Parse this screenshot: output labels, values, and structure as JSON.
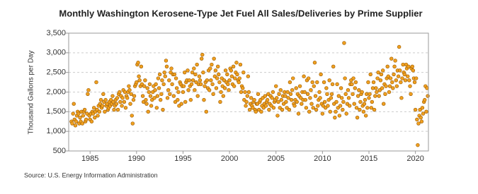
{
  "chart_data": {
    "type": "scatter",
    "title": "Monthly Washington Kerosene-Type Jet Fuel All Sales/Deliveries by Prime Supplier",
    "y_label": "Thousand Gallons per Day",
    "source": "Source: U.S. Energy Information Administration",
    "xlim": [
      1982.7,
      2021.4
    ],
    "xticks": [
      1985,
      1990,
      1995,
      2000,
      2005,
      2010,
      2015,
      2020
    ],
    "ylim": [
      500,
      3500
    ],
    "yticks": [
      500,
      {
        "value": 1000,
        "label": "1,000"
      },
      {
        "value": 1500,
        "label": "1,500"
      },
      {
        "value": 2000,
        "label": "2,000"
      },
      {
        "value": 2500,
        "label": "2,500"
      },
      {
        "value": 3000,
        "label": "3,000"
      },
      {
        "value": 3500,
        "label": "3,500"
      }
    ],
    "grid": true,
    "color": "#f0a020",
    "x": [
      1983,
      1983.08,
      1983.17,
      1983.25,
      1983.33,
      1983.42,
      1983.5,
      1983.58,
      1983.67,
      1983.75,
      1983.83,
      1983.92,
      1984,
      1984.08,
      1984.17,
      1984.25,
      1984.33,
      1984.42,
      1984.5,
      1984.58,
      1984.67,
      1984.75,
      1984.83,
      1984.92,
      1985,
      1985.08,
      1985.17,
      1985.25,
      1985.33,
      1985.42,
      1985.5,
      1985.58,
      1985.67,
      1985.75,
      1985.83,
      1985.92,
      1986,
      1986.08,
      1986.17,
      1986.25,
      1986.33,
      1986.42,
      1986.5,
      1986.58,
      1986.67,
      1986.75,
      1986.83,
      1986.92,
      1987,
      1987.08,
      1987.17,
      1987.25,
      1987.33,
      1987.42,
      1987.5,
      1987.58,
      1987.67,
      1987.75,
      1987.83,
      1987.92,
      1988,
      1988.08,
      1988.17,
      1988.25,
      1988.33,
      1988.42,
      1988.5,
      1988.58,
      1988.67,
      1988.75,
      1988.83,
      1988.92,
      1989,
      1989.08,
      1989.17,
      1989.25,
      1989.33,
      1989.42,
      1989.5,
      1989.58,
      1989.67,
      1989.75,
      1989.83,
      1989.92,
      1990,
      1990.08,
      1990.17,
      1990.25,
      1990.33,
      1990.42,
      1990.5,
      1990.58,
      1990.67,
      1990.75,
      1990.83,
      1990.92,
      1991,
      1991.08,
      1991.17,
      1991.25,
      1991.33,
      1991.42,
      1991.5,
      1991.58,
      1991.67,
      1991.75,
      1991.83,
      1991.92,
      1992,
      1992.08,
      1992.17,
      1992.25,
      1992.33,
      1992.42,
      1992.5,
      1992.58,
      1992.67,
      1992.75,
      1992.83,
      1992.92,
      1993,
      1993.08,
      1993.17,
      1993.25,
      1993.33,
      1993.42,
      1993.5,
      1993.58,
      1993.67,
      1993.75,
      1993.83,
      1993.92,
      1994,
      1994.08,
      1994.17,
      1994.25,
      1994.33,
      1994.42,
      1994.5,
      1994.58,
      1994.67,
      1994.75,
      1994.83,
      1994.92,
      1995,
      1995.08,
      1995.17,
      1995.25,
      1995.33,
      1995.42,
      1995.5,
      1995.58,
      1995.67,
      1995.75,
      1995.83,
      1995.92,
      1996,
      1996.08,
      1996.17,
      1996.25,
      1996.33,
      1996.42,
      1996.5,
      1996.58,
      1996.67,
      1996.75,
      1996.83,
      1996.92,
      1997,
      1997.08,
      1997.17,
      1997.25,
      1997.33,
      1997.42,
      1997.5,
      1997.58,
      1997.67,
      1997.75,
      1997.83,
      1997.92,
      1998,
      1998.08,
      1998.17,
      1998.25,
      1998.33,
      1998.42,
      1998.5,
      1998.58,
      1998.67,
      1998.75,
      1998.83,
      1998.92,
      1999,
      1999.08,
      1999.17,
      1999.25,
      1999.33,
      1999.42,
      1999.5,
      1999.58,
      1999.67,
      1999.75,
      1999.83,
      1999.92,
      2000,
      2000.08,
      2000.17,
      2000.25,
      2000.33,
      2000.42,
      2000.5,
      2000.58,
      2000.67,
      2000.75,
      2000.83,
      2000.92,
      2001,
      2001.08,
      2001.17,
      2001.25,
      2001.33,
      2001.42,
      2001.5,
      2001.58,
      2001.67,
      2001.75,
      2001.83,
      2001.92,
      2002,
      2002.08,
      2002.17,
      2002.25,
      2002.33,
      2002.42,
      2002.5,
      2002.58,
      2002.67,
      2002.75,
      2002.83,
      2002.92,
      2003,
      2003.08,
      2003.17,
      2003.25,
      2003.33,
      2003.42,
      2003.5,
      2003.58,
      2003.67,
      2003.75,
      2003.83,
      2003.92,
      2004,
      2004.08,
      2004.17,
      2004.25,
      2004.33,
      2004.42,
      2004.5,
      2004.58,
      2004.67,
      2004.75,
      2004.83,
      2004.92,
      2005,
      2005.08,
      2005.17,
      2005.25,
      2005.33,
      2005.42,
      2005.5,
      2005.58,
      2005.67,
      2005.75,
      2005.83,
      2005.92,
      2006,
      2006.08,
      2006.17,
      2006.25,
      2006.33,
      2006.42,
      2006.5,
      2006.58,
      2006.67,
      2006.75,
      2006.83,
      2006.92,
      2007,
      2007.08,
      2007.17,
      2007.25,
      2007.33,
      2007.42,
      2007.5,
      2007.58,
      2007.67,
      2007.75,
      2007.83,
      2007.92,
      2008,
      2008.08,
      2008.17,
      2008.25,
      2008.33,
      2008.42,
      2008.5,
      2008.58,
      2008.67,
      2008.75,
      2008.83,
      2008.92,
      2009,
      2009.08,
      2009.17,
      2009.25,
      2009.33,
      2009.42,
      2009.5,
      2009.58,
      2009.67,
      2009.75,
      2009.83,
      2009.92,
      2010,
      2010.08,
      2010.17,
      2010.25,
      2010.33,
      2010.42,
      2010.5,
      2010.58,
      2010.67,
      2010.75,
      2010.83,
      2010.92,
      2011,
      2011.08,
      2011.17,
      2011.25,
      2011.33,
      2011.42,
      2011.5,
      2011.58,
      2011.67,
      2011.75,
      2011.83,
      2011.92,
      2012,
      2012.08,
      2012.17,
      2012.25,
      2012.33,
      2012.42,
      2012.5,
      2012.58,
      2012.67,
      2012.75,
      2012.83,
      2012.92,
      2013,
      2013.08,
      2013.17,
      2013.25,
      2013.33,
      2013.42,
      2013.5,
      2013.58,
      2013.67,
      2013.75,
      2013.83,
      2013.92,
      2014,
      2014.08,
      2014.17,
      2014.25,
      2014.33,
      2014.42,
      2014.5,
      2014.58,
      2014.67,
      2014.75,
      2014.83,
      2014.92,
      2015,
      2015.08,
      2015.17,
      2015.25,
      2015.33,
      2015.42,
      2015.5,
      2015.58,
      2015.67,
      2015.75,
      2015.83,
      2015.92,
      2016,
      2016.08,
      2016.17,
      2016.25,
      2016.33,
      2016.42,
      2016.5,
      2016.58,
      2016.67,
      2016.75,
      2016.83,
      2016.92,
      2017,
      2017.08,
      2017.17,
      2017.25,
      2017.33,
      2017.42,
      2017.5,
      2017.58,
      2017.67,
      2017.75,
      2017.83,
      2017.92,
      2018,
      2018.08,
      2018.17,
      2018.25,
      2018.33,
      2018.42,
      2018.5,
      2018.58,
      2018.67,
      2018.75,
      2018.83,
      2018.92,
      2019,
      2019.08,
      2019.17,
      2019.25,
      2019.33,
      2019.42,
      2019.5,
      2019.58,
      2019.67,
      2019.75,
      2019.83,
      2019.92,
      2020,
      2020.08,
      2020.17,
      2020.25,
      2020.33,
      2020.42,
      2020.5,
      2020.58,
      2020.67,
      2020.75,
      2020.83,
      2020.92,
      2021,
      2021.08,
      2021.17,
      2021.25,
      2021.33
    ],
    "values": [
      1250,
      1200,
      1450,
      1700,
      1300,
      1150,
      1250,
      1400,
      1500,
      1450,
      1200,
      1350,
      1250,
      1500,
      1200,
      1400,
      1500,
      1550,
      1250,
      1300,
      1450,
      1950,
      2050,
      1400,
      1300,
      1450,
      1250,
      1500,
      1450,
      1600,
      1350,
      1500,
      2250,
      1550,
      1400,
      1650,
      1500,
      1700,
      1800,
      1600,
      1650,
      1950,
      1750,
      1500,
      1800,
      1650,
      1700,
      1550,
      1600,
      1750,
      1650,
      1800,
      1700,
      1900,
      1750,
      1550,
      1650,
      1800,
      1700,
      1850,
      1550,
      1950,
      2000,
      1750,
      1900,
      1650,
      1850,
      2050,
      1750,
      2000,
      1600,
      1900,
      1850,
      2000,
      2150,
      2050,
      1700,
      1950,
      1400,
      1200,
      1800,
      1900,
      2150,
      2200,
      2250,
      2700,
      2750,
      2400,
      2300,
      2150,
      2650,
      2200,
      1900,
      1750,
      2150,
      2300,
      1800,
      1700,
      2100,
      1500,
      2000,
      2200,
      1900,
      1650,
      1800,
      2000,
      2150,
      1850,
      2050,
      2200,
      1600,
      1900,
      2350,
      2100,
      2450,
      1800,
      1950,
      2300,
      1550,
      2200,
      2500,
      2400,
      2800,
      2650,
      1850,
      2050,
      2300,
      1950,
      2500,
      2600,
      2200,
      2450,
      1900,
      2450,
      1750,
      2350,
      2100,
      1800,
      2000,
      1650,
      2250,
      2200,
      1700,
      2150,
      2000,
      2150,
      2500,
      1750,
      2250,
      2300,
      2550,
      2050,
      2300,
      2150,
      1800,
      2200,
      2500,
      2300,
      2600,
      2050,
      2450,
      2250,
      2700,
      1900,
      2200,
      2400,
      2300,
      2200,
      2850,
      2950,
      2500,
      1800,
      2150,
      2250,
      1500,
      2300,
      2100,
      2550,
      2050,
      2600,
      2300,
      2700,
      2200,
      1950,
      2850,
      2400,
      2550,
      2100,
      2350,
      2650,
      2450,
      2250,
      1750,
      2000,
      2350,
      2150,
      1900,
      2300,
      2100,
      2550,
      2250,
      2450,
      2200,
      2050,
      2300,
      2600,
      2550,
      2400,
      2200,
      2650,
      2150,
      2350,
      2500,
      2750,
      2450,
      2300,
      2250,
      2350,
      2700,
      2000,
      2150,
      2100,
      2500,
      1800,
      2000,
      1650,
      1750,
      1900,
      2400,
      2000,
      1550,
      1700,
      1850,
      1650,
      1600,
      1750,
      1800,
      1550,
      1500,
      1700,
      1700,
      1950,
      1550,
      1750,
      1800,
      1500,
      1650,
      1850,
      1600,
      1700,
      1900,
      1650,
      1750,
      1800,
      1950,
      1550,
      1700,
      1900,
      1650,
      1850,
      2000,
      1600,
      1750,
      1800,
      2150,
      1850,
      1400,
      1750,
      1950,
      1600,
      2050,
      1800,
      1550,
      1900,
      1700,
      2000,
      1900,
      1750,
      1600,
      2000,
      1850,
      1550,
      2250,
      1950,
      1800,
      2050,
      2350,
      1700,
      1650,
      1800,
      2100,
      1750,
      1950,
      1450,
      1900,
      2150,
      1850,
      1700,
      2000,
      1800,
      2400,
      2000,
      1800,
      1600,
      2300,
      1950,
      2350,
      1500,
      1850,
      2050,
      1700,
      2250,
      1600,
      2150,
      2750,
      1900,
      1550,
      2250,
      1650,
      1800,
      2000,
      1850,
      2450,
      1700,
      1450,
      1650,
      2250,
      1750,
      1600,
      2100,
      1950,
      1650,
      1800,
      2300,
      1500,
      1850,
      1950,
      2200,
      2650,
      1700,
      1350,
      1500,
      1750,
      2200,
      1600,
      1900,
      1400,
      1650,
      2100,
      1850,
      1550,
      1750,
      3250,
      2350,
      1950,
      1450,
      1700,
      2050,
      1850,
      1650,
      2200,
      2300,
      2200,
      1950,
      2350,
      1700,
      2100,
      2250,
      1600,
      1350,
      1900,
      2050,
      1550,
      1750,
      1950,
      2000,
      1650,
      1500,
      1700,
      1800,
      1400,
      1950,
      1600,
      2250,
      1850,
      1950,
      2450,
      1600,
      1750,
      2100,
      2250,
      1550,
      1900,
      2100,
      2000,
      2350,
      2500,
      1900,
      2050,
      2300,
      2450,
      2100,
      2550,
      1700,
      2200,
      1950,
      2150,
      2350,
      2650,
      2400,
      2000,
      2150,
      2350,
      2850,
      2250,
      2100,
      2450,
      2650,
      2800,
      2300,
      2150,
      2550,
      2400,
      3150,
      2550,
      2250,
      1850,
      2350,
      2700,
      2500,
      2450,
      2300,
      2700,
      2600,
      2400,
      2650,
      2300,
      2150,
      1950,
      2600,
      2650,
      2550,
      2350,
      2250,
      1550,
      2350,
      1300,
      650,
      1200,
      1400,
      1550,
      1350,
      1250,
      1600,
      1450,
      1750,
      1800,
      2150,
      1500,
      2100,
      1900
    ]
  }
}
